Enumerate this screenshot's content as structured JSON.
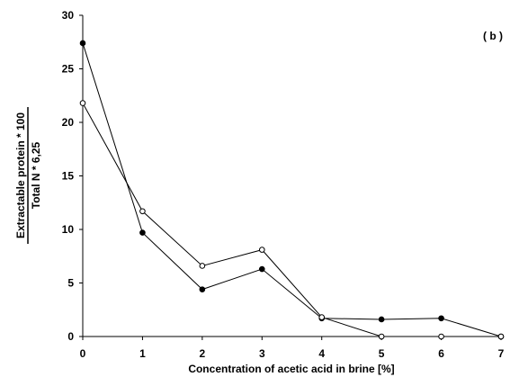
{
  "chart_data": {
    "type": "line",
    "panel_label": "( b )",
    "xlabel": "Concentration of acetic acid in brine [%]",
    "ylabel_numerator": "Extractable protein * 100",
    "ylabel_denominator": "Total N * 6,25",
    "xlim": [
      0,
      7
    ],
    "ylim": [
      0,
      30
    ],
    "x_ticks": [
      "0",
      "1",
      "2",
      "3",
      "4",
      "5",
      "6",
      "7"
    ],
    "y_ticks": [
      "0",
      "5",
      "10",
      "15",
      "20",
      "25",
      "30"
    ],
    "x": [
      0,
      1,
      2,
      3,
      4,
      5,
      6,
      7
    ],
    "series": [
      {
        "marker": "filled-circle",
        "values": [
          27.4,
          9.7,
          4.4,
          6.3,
          1.7,
          1.6,
          1.7,
          0.0
        ]
      },
      {
        "marker": "open-circle",
        "values": [
          21.8,
          11.7,
          6.6,
          8.1,
          1.8,
          0.0,
          0.0,
          0.0
        ]
      }
    ],
    "grid": false,
    "legend": "none"
  }
}
